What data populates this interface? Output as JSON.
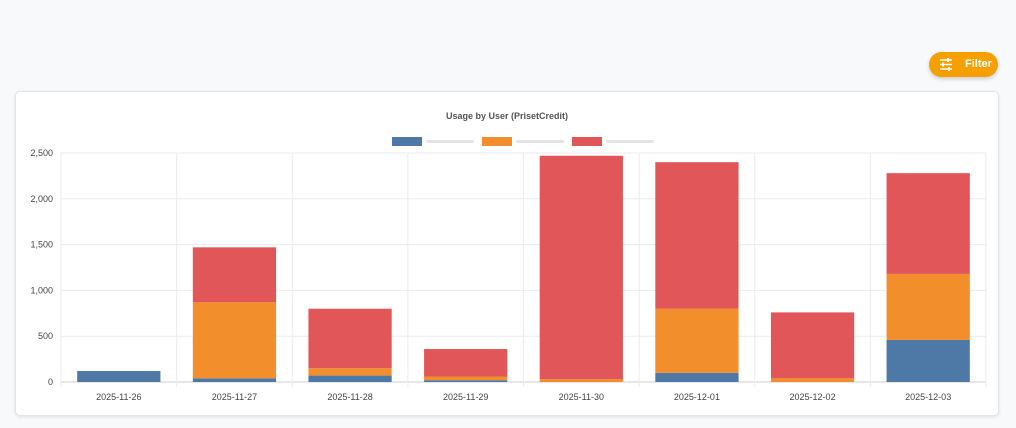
{
  "filter_button": {
    "label": "Filter",
    "icon": "sliders-icon",
    "color": "#f5a000"
  },
  "chart_data": {
    "type": "bar",
    "stacked": true,
    "title": "Usage by User (PrisetCredit)",
    "xlabel": "",
    "ylabel": "",
    "categories": [
      "2025-11-26",
      "2025-11-27",
      "2025-11-28",
      "2025-11-29",
      "2025-11-30",
      "2025-12-01",
      "2025-12-02",
      "2025-12-03"
    ],
    "series": [
      {
        "color": "#4e79a7",
        "values": [
          120,
          40,
          70,
          20,
          0,
          100,
          0,
          460
        ]
      },
      {
        "color": "#f28e2b",
        "values": [
          0,
          830,
          80,
          40,
          30,
          700,
          40,
          720
        ]
      },
      {
        "color": "#e15759",
        "values": [
          0,
          600,
          650,
          300,
          2440,
          1600,
          720,
          1100
        ]
      }
    ],
    "ylim": [
      0,
      2500
    ],
    "yticks": [
      0,
      500,
      1000,
      1500,
      2000,
      2500
    ],
    "ytick_labels": [
      "0",
      "500",
      "1,000",
      "1,500",
      "2,000",
      "2,500"
    ],
    "grid": true,
    "legend": "top-center"
  }
}
